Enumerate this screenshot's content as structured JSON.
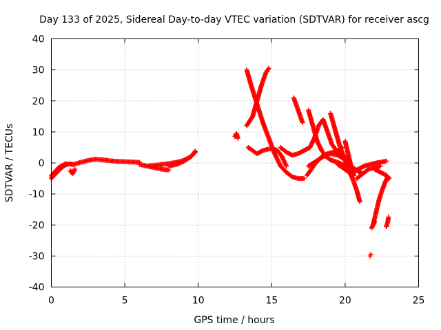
{
  "chart_data": {
    "type": "scatter",
    "title": "Day 133 of 2025, Sidereal Day-to-day VTEC variation (SDTVAR) for receiver ascg",
    "xlabel": "GPS time / hours",
    "ylabel": "SDTVAR / TECUs",
    "xlim": [
      0,
      25
    ],
    "ylim": [
      -40,
      40
    ],
    "xticks": [
      0,
      5,
      10,
      15,
      20,
      25
    ],
    "yticks": [
      -40,
      -30,
      -20,
      -10,
      0,
      10,
      20,
      30,
      40
    ],
    "grid": true,
    "marker": "+",
    "color": "#ff0000",
    "series": [
      {
        "name": "seg1",
        "x": [
          0.0,
          0.3,
          0.6,
          0.9,
          1.2,
          1.5,
          2.0,
          2.5,
          3.0,
          3.5,
          4.0,
          4.5,
          5.0,
          5.5,
          6.0
        ],
        "y": [
          -5.0,
          -3.5,
          -2.0,
          -0.8,
          -0.3,
          -0.5,
          0.2,
          0.8,
          1.2,
          1.0,
          0.7,
          0.5,
          0.4,
          0.3,
          0.2
        ]
      },
      {
        "name": "seg2",
        "x": [
          0.0,
          0.2,
          0.5,
          0.8,
          1.0
        ],
        "y": [
          -4.2,
          -3.0,
          -1.5,
          -0.6,
          -0.2
        ]
      },
      {
        "name": "seg3",
        "x": [
          1.3,
          1.45,
          1.6
        ],
        "y": [
          -2.5,
          -3.5,
          -2.0
        ]
      },
      {
        "name": "seg4",
        "x": [
          6.0,
          6.5,
          7.0,
          7.5,
          8.0
        ],
        "y": [
          -0.5,
          -1.0,
          -1.5,
          -2.0,
          -2.3
        ]
      },
      {
        "name": "seg5",
        "x": [
          6.5,
          7.0,
          7.5,
          8.0,
          8.5,
          9.0,
          9.5,
          9.8
        ],
        "y": [
          -1.0,
          -0.8,
          -0.5,
          -0.2,
          0.2,
          0.8,
          2.0,
          3.5
        ]
      },
      {
        "name": "seg6",
        "x": [
          8.0,
          8.5,
          9.0,
          9.5,
          9.8
        ],
        "y": [
          -1.0,
          -0.5,
          0.5,
          2.0,
          3.8
        ]
      },
      {
        "name": "seg7",
        "x": [
          12.5,
          12.6,
          12.7
        ],
        "y": [
          8.5,
          9.5,
          8.0
        ]
      },
      {
        "name": "seg8",
        "x": [
          13.3,
          13.6,
          14.0,
          14.4,
          14.8,
          15.2,
          15.6,
          16.0,
          16.4,
          16.8,
          17.2
        ],
        "y": [
          30.0,
          25.0,
          19.0,
          13.0,
          8.0,
          3.0,
          -1.0,
          -3.0,
          -4.5,
          -5.0,
          -5.0
        ]
      },
      {
        "name": "seg9",
        "x": [
          13.3,
          13.7,
          14.0,
          14.3,
          14.6,
          14.8
        ],
        "y": [
          12.0,
          15.0,
          20.0,
          25.0,
          29.0,
          30.5
        ]
      },
      {
        "name": "seg10",
        "x": [
          13.4,
          13.7,
          14.0,
          14.4,
          14.8,
          15.1,
          15.4,
          15.7,
          16.0
        ],
        "y": [
          5.0,
          4.0,
          3.0,
          4.0,
          4.5,
          4.5,
          4.0,
          2.0,
          -1.0
        ]
      },
      {
        "name": "seg11",
        "x": [
          15.6,
          16.0,
          16.4,
          16.8,
          17.2,
          17.6
        ],
        "y": [
          5.0,
          3.5,
          2.5,
          3.0,
          4.0,
          5.0
        ]
      },
      {
        "name": "seg12",
        "x": [
          16.5,
          16.8,
          17.1
        ],
        "y": [
          21.0,
          17.0,
          13.0
        ]
      },
      {
        "name": "seg13",
        "x": [
          17.5,
          17.8,
          18.1,
          18.4,
          18.7,
          19.0,
          19.3,
          19.6,
          20.0
        ],
        "y": [
          17.0,
          12.0,
          7.0,
          4.0,
          2.0,
          1.0,
          0.5,
          0.0,
          -1.0
        ]
      },
      {
        "name": "seg14",
        "x": [
          17.4,
          17.7,
          18.0,
          18.4,
          18.8,
          19.2,
          19.5,
          19.8
        ],
        "y": [
          -4.0,
          -2.0,
          0.0,
          2.0,
          3.0,
          3.5,
          4.0,
          5.0
        ]
      },
      {
        "name": "seg15",
        "x": [
          17.6,
          17.9,
          18.2,
          18.5,
          18.8,
          19.1,
          19.4,
          19.7,
          20.0,
          20.3
        ],
        "y": [
          5.0,
          8.0,
          12.0,
          14.0,
          10.0,
          6.0,
          4.0,
          3.0,
          2.0,
          0.0
        ]
      },
      {
        "name": "seg16",
        "x": [
          19.0,
          19.3,
          19.6,
          19.9,
          20.2,
          20.5,
          20.8,
          21.0
        ],
        "y": [
          16.0,
          11.0,
          6.0,
          2.0,
          -2.0,
          -5.0,
          -9.0,
          -12.5
        ]
      },
      {
        "name": "seg17",
        "x": [
          17.5,
          18.0,
          18.5,
          19.0,
          19.5,
          20.0,
          20.4,
          20.8,
          21.2
        ],
        "y": [
          -1.0,
          0.5,
          2.0,
          3.0,
          2.5,
          1.0,
          -1.0,
          -2.5,
          -3.5
        ]
      },
      {
        "name": "seg18",
        "x": [
          19.5,
          19.8,
          20.1,
          20.4,
          20.7
        ],
        "y": [
          -0.5,
          -1.5,
          -2.5,
          -3.0,
          -2.0
        ]
      },
      {
        "name": "seg19",
        "x": [
          20.0,
          20.2,
          20.4,
          20.6
        ],
        "y": [
          7.0,
          3.0,
          -1.0,
          -4.0
        ]
      },
      {
        "name": "seg20",
        "x": [
          20.5,
          20.9,
          21.3,
          21.7,
          22.1,
          22.5,
          22.8
        ],
        "y": [
          -3.0,
          -2.0,
          -1.0,
          -0.5,
          0.0,
          0.3,
          0.6
        ]
      },
      {
        "name": "seg21",
        "x": [
          20.8,
          21.2,
          21.6,
          22.0,
          22.4
        ],
        "y": [
          -5.0,
          -3.5,
          -2.0,
          -1.5,
          -1.0
        ]
      },
      {
        "name": "seg22",
        "x": [
          22.0,
          22.2,
          22.4,
          22.6,
          22.8,
          23.0
        ],
        "y": [
          -2.0,
          -2.5,
          -3.0,
          -3.5,
          -4.0,
          -5.0
        ]
      },
      {
        "name": "seg23",
        "x": [
          21.9,
          22.1,
          22.3,
          22.5,
          22.7,
          22.9
        ],
        "y": [
          -20.0,
          -16.0,
          -12.0,
          -9.0,
          -6.5,
          -4.5
        ]
      },
      {
        "name": "seg24",
        "x": [
          21.8,
          21.9,
          22.0
        ],
        "y": [
          -21.0,
          -20.0,
          -19.0
        ]
      },
      {
        "name": "seg25",
        "x": [
          22.8,
          22.9,
          22.95
        ],
        "y": [
          -20.5,
          -19.0,
          -17.5
        ]
      },
      {
        "name": "seg26",
        "x": [
          21.7,
          21.75
        ],
        "y": [
          -30.0,
          -29.5
        ]
      }
    ]
  }
}
